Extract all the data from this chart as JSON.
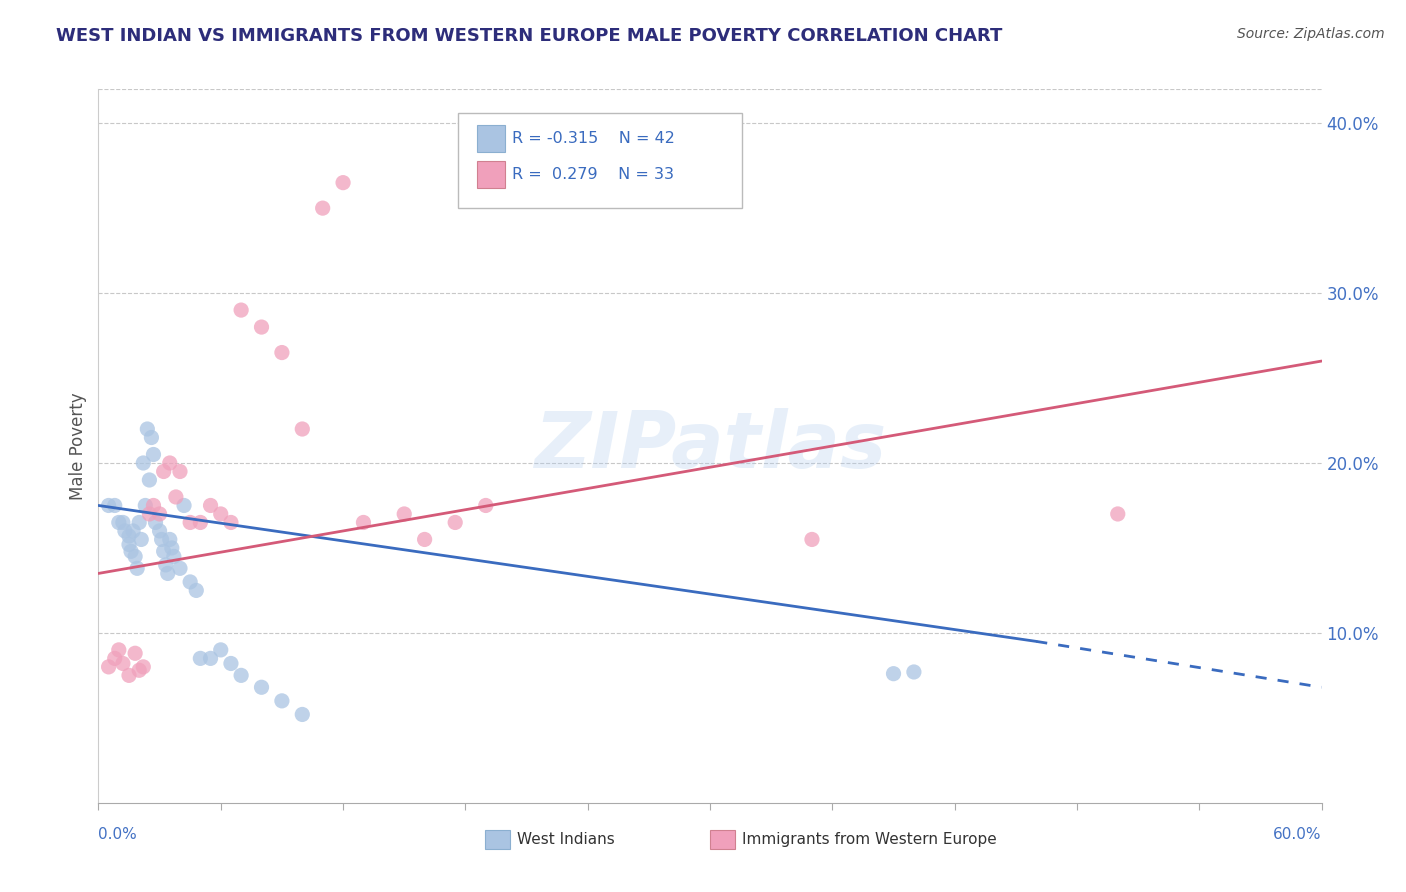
{
  "title": "WEST INDIAN VS IMMIGRANTS FROM WESTERN EUROPE MALE POVERTY CORRELATION CHART",
  "source": "Source: ZipAtlas.com",
  "ylabel": "Male Poverty",
  "xmin": 0.0,
  "xmax": 0.6,
  "ymin": 0.0,
  "ymax": 0.42,
  "yticks": [
    0.1,
    0.2,
    0.3,
    0.4
  ],
  "ytick_labels": [
    "10.0%",
    "20.0%",
    "30.0%",
    "40.0%"
  ],
  "series": [
    {
      "name": "West Indians",
      "R": -0.315,
      "N": 42,
      "color": "#aac4e2",
      "line_color": "#3a6bbf",
      "scatter_x": [
        0.005,
        0.008,
        0.01,
        0.012,
        0.013,
        0.015,
        0.015,
        0.016,
        0.017,
        0.018,
        0.019,
        0.02,
        0.021,
        0.022,
        0.023,
        0.024,
        0.025,
        0.026,
        0.027,
        0.028,
        0.03,
        0.031,
        0.032,
        0.033,
        0.034,
        0.035,
        0.036,
        0.037,
        0.04,
        0.042,
        0.045,
        0.048,
        0.05,
        0.055,
        0.06,
        0.065,
        0.07,
        0.08,
        0.09,
        0.1,
        0.39,
        0.4
      ],
      "scatter_y": [
        0.175,
        0.175,
        0.165,
        0.165,
        0.16,
        0.157,
        0.152,
        0.148,
        0.16,
        0.145,
        0.138,
        0.165,
        0.155,
        0.2,
        0.175,
        0.22,
        0.19,
        0.215,
        0.205,
        0.165,
        0.16,
        0.155,
        0.148,
        0.14,
        0.135,
        0.155,
        0.15,
        0.145,
        0.138,
        0.175,
        0.13,
        0.125,
        0.085,
        0.085,
        0.09,
        0.082,
        0.075,
        0.068,
        0.06,
        0.052,
        0.076,
        0.077
      ],
      "trend_solid_x0": 0.0,
      "trend_solid_x1": 0.46,
      "trend_solid_y0": 0.175,
      "trend_solid_y1": 0.095,
      "trend_dash_x0": 0.46,
      "trend_dash_x1": 0.6,
      "trend_dash_y0": 0.095,
      "trend_dash_y1": 0.068
    },
    {
      "name": "Immigrants from Western Europe",
      "R": 0.279,
      "N": 33,
      "color": "#f0a0bb",
      "line_color": "#d45a78",
      "scatter_x": [
        0.005,
        0.008,
        0.01,
        0.012,
        0.015,
        0.018,
        0.02,
        0.022,
        0.025,
        0.027,
        0.03,
        0.032,
        0.035,
        0.038,
        0.04,
        0.045,
        0.05,
        0.055,
        0.06,
        0.065,
        0.07,
        0.08,
        0.09,
        0.1,
        0.11,
        0.12,
        0.13,
        0.15,
        0.16,
        0.175,
        0.19,
        0.35,
        0.5
      ],
      "scatter_y": [
        0.08,
        0.085,
        0.09,
        0.082,
        0.075,
        0.088,
        0.078,
        0.08,
        0.17,
        0.175,
        0.17,
        0.195,
        0.2,
        0.18,
        0.195,
        0.165,
        0.165,
        0.175,
        0.17,
        0.165,
        0.29,
        0.28,
        0.265,
        0.22,
        0.35,
        0.365,
        0.165,
        0.17,
        0.155,
        0.165,
        0.175,
        0.155,
        0.17
      ],
      "trend_x0": 0.0,
      "trend_x1": 0.6,
      "trend_y0": 0.135,
      "trend_y1": 0.26
    }
  ],
  "watermark": "ZIPatlas",
  "title_color": "#2d2d7a",
  "source_color": "#555555",
  "axis_label_color": "#4472c4",
  "background_color": "#ffffff",
  "grid_color": "#c8c8c8"
}
